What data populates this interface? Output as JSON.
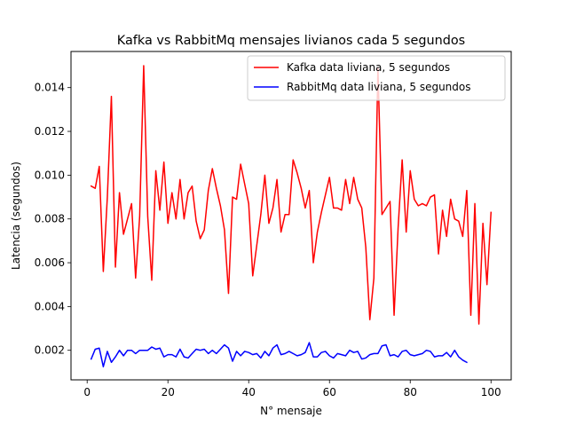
{
  "chart_data": {
    "type": "line",
    "title": "Kafka vs RabbitMq mensajes livianos cada 5 segundos",
    "xlabel": "N° mensaje",
    "ylabel": "Latencia (segundos)",
    "xlim": [
      -4,
      105
    ],
    "ylim": [
      0.00065,
      0.01565
    ],
    "xticks": [
      0,
      20,
      40,
      60,
      80,
      100
    ],
    "xtick_labels": [
      "0",
      "20",
      "40",
      "60",
      "80",
      "100"
    ],
    "yticks": [
      0.002,
      0.004,
      0.006,
      0.008,
      0.01,
      0.012,
      0.014
    ],
    "ytick_labels": [
      "0.002",
      "0.004",
      "0.006",
      "0.008",
      "0.010",
      "0.012",
      "0.014"
    ],
    "grid": false,
    "legend_position": "top-right",
    "series": [
      {
        "name": "Kafka data liviana, 5 segundos",
        "color": "#ff0000",
        "x_start": 1,
        "values": [
          0.0095,
          0.0094,
          0.0104,
          0.0056,
          0.009,
          0.0136,
          0.0058,
          0.0092,
          0.0073,
          0.008,
          0.0087,
          0.0053,
          0.0081,
          0.015,
          0.0081,
          0.0052,
          0.0102,
          0.0084,
          0.0106,
          0.0078,
          0.0092,
          0.008,
          0.0098,
          0.008,
          0.0092,
          0.0095,
          0.0079,
          0.0071,
          0.0075,
          0.0093,
          0.0103,
          0.0094,
          0.0086,
          0.0075,
          0.0046,
          0.009,
          0.0089,
          0.0105,
          0.0096,
          0.0087,
          0.0054,
          0.0068,
          0.0082,
          0.01,
          0.0078,
          0.0085,
          0.0098,
          0.0074,
          0.0082,
          0.0082,
          0.0107,
          0.0101,
          0.0094,
          0.0085,
          0.0093,
          0.006,
          0.0074,
          0.0083,
          0.0091,
          0.0099,
          0.0085,
          0.0085,
          0.0084,
          0.0098,
          0.0087,
          0.0099,
          0.0089,
          0.0085,
          0.0067,
          0.0034,
          0.0053,
          0.0149,
          0.0082,
          0.0085,
          0.0088,
          0.0036,
          0.0076,
          0.0107,
          0.0074,
          0.0102,
          0.0089,
          0.0086,
          0.0087,
          0.0086,
          0.009,
          0.0091,
          0.0064,
          0.0084,
          0.0072,
          0.0089,
          0.008,
          0.0079,
          0.0072,
          0.0093,
          0.0036,
          0.0087,
          0.0032,
          0.0078,
          0.005,
          0.0083
        ]
      },
      {
        "name": "RabbitMq data liviana, 5 segundos",
        "color": "#0000ff",
        "x_start": 1,
        "values": [
          0.0016,
          0.00205,
          0.0021,
          0.00125,
          0.00195,
          0.00145,
          0.0017,
          0.002,
          0.00175,
          0.002,
          0.002,
          0.00185,
          0.002,
          0.002,
          0.002,
          0.00215,
          0.00205,
          0.0021,
          0.0017,
          0.0018,
          0.0018,
          0.0017,
          0.00205,
          0.0017,
          0.00165,
          0.00185,
          0.00205,
          0.002,
          0.00205,
          0.00185,
          0.002,
          0.00185,
          0.00205,
          0.00225,
          0.0021,
          0.0015,
          0.00195,
          0.00175,
          0.00195,
          0.0019,
          0.0018,
          0.00185,
          0.00165,
          0.00195,
          0.00175,
          0.0021,
          0.00225,
          0.0018,
          0.00185,
          0.00195,
          0.00185,
          0.00175,
          0.0018,
          0.0019,
          0.00235,
          0.0017,
          0.0017,
          0.0019,
          0.00195,
          0.00175,
          0.00165,
          0.00185,
          0.0018,
          0.00175,
          0.002,
          0.0019,
          0.00195,
          0.0016,
          0.00165,
          0.0018,
          0.00185,
          0.00185,
          0.0022,
          0.00225,
          0.00175,
          0.0018,
          0.0017,
          0.00195,
          0.002,
          0.0018,
          0.00175,
          0.0018,
          0.00185,
          0.002,
          0.00195,
          0.0017,
          0.00175,
          0.00175,
          0.0019,
          0.0017,
          0.002,
          0.0017,
          0.00155,
          0.00145
        ]
      }
    ]
  }
}
